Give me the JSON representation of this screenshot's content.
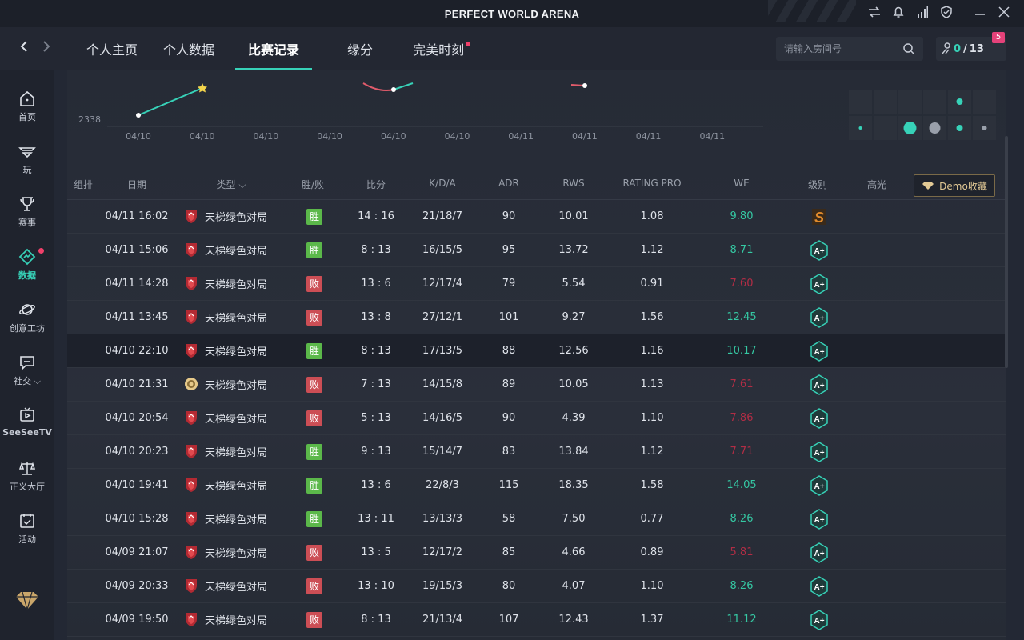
{
  "window": {
    "title": "PERFECT WORLD ARENA"
  },
  "nav": {
    "tabs": [
      {
        "label": "个人主页"
      },
      {
        "label": "个人数据"
      },
      {
        "label": "比赛记录",
        "active": true
      },
      {
        "label": "缘分"
      },
      {
        "label": "完美时刻",
        "dot": true
      }
    ]
  },
  "search": {
    "placeholder": "请输入房间号"
  },
  "counter": {
    "current": "0",
    "separator": "/",
    "total": "13",
    "badge": "5"
  },
  "sidebar": {
    "items": [
      {
        "label": "首页",
        "icon": "home-icon"
      },
      {
        "label": "玩",
        "icon": "play-icon"
      },
      {
        "label": "赛事",
        "icon": "trophy-icon"
      },
      {
        "label": "数据",
        "icon": "data-icon",
        "active": true
      },
      {
        "label": "创意工坊",
        "icon": "planet-icon"
      },
      {
        "label": "社交",
        "icon": "chat-icon"
      },
      {
        "label": "SeeSeeTV",
        "icon": "tv-icon"
      },
      {
        "label": "正义大厅",
        "icon": "justice-icon"
      },
      {
        "label": "活动",
        "icon": "calendar-icon"
      }
    ]
  },
  "chart_data": {
    "type": "line",
    "y_tick_label": "2338",
    "x_labels": [
      "04/10",
      "04/10",
      "04/10",
      "04/10",
      "04/10",
      "04/10",
      "04/11",
      "04/11",
      "04/11",
      "04/11"
    ]
  },
  "table": {
    "headers": {
      "group": "组排",
      "date": "日期",
      "type": "类型",
      "result": "胜/败",
      "score": "比分",
      "kda": "K/D/A",
      "adr": "ADR",
      "rws": "RWS",
      "rating": "RATING PRO",
      "we": "WE",
      "level": "级别",
      "highlight": "高光"
    },
    "demo_button": "Demo收藏",
    "rows": [
      {
        "date": "04/11 16:02",
        "type": "天梯绿色对局",
        "result": "胜",
        "win": true,
        "score": "14 : 16",
        "kda": "21/18/7",
        "adr": "90",
        "rws": "10.01",
        "rating": "1.08",
        "we": "9.80",
        "we_high": true,
        "level": "S"
      },
      {
        "date": "04/11 15:06",
        "type": "天梯绿色对局",
        "result": "胜",
        "win": true,
        "score": "8 : 13",
        "kda": "16/15/5",
        "adr": "95",
        "rws": "13.72",
        "rating": "1.12",
        "we": "8.71",
        "we_high": true,
        "level": "A+"
      },
      {
        "date": "04/11 14:28",
        "type": "天梯绿色对局",
        "result": "败",
        "win": false,
        "score": "13 : 6",
        "kda": "12/17/4",
        "adr": "79",
        "rws": "5.54",
        "rating": "0.91",
        "we": "7.60",
        "we_high": false,
        "level": "A+"
      },
      {
        "date": "04/11 13:45",
        "type": "天梯绿色对局",
        "result": "败",
        "win": false,
        "score": "13 : 8",
        "kda": "27/12/1",
        "adr": "101",
        "rws": "9.27",
        "rating": "1.56",
        "we": "12.45",
        "we_high": true,
        "level": "A+"
      },
      {
        "date": "04/10 22:10",
        "type": "天梯绿色对局",
        "result": "胜",
        "win": true,
        "score": "8 : 13",
        "kda": "17/13/5",
        "adr": "88",
        "rws": "12.56",
        "rating": "1.16",
        "we": "10.17",
        "we_high": true,
        "level": "A+",
        "highlighted": true
      },
      {
        "date": "04/10 21:31",
        "type": "天梯绿色对局",
        "result": "败",
        "win": false,
        "score": "7 : 13",
        "kda": "14/15/8",
        "adr": "89",
        "rws": "10.05",
        "rating": "1.13",
        "we": "7.61",
        "we_high": false,
        "level": "A+",
        "alt_icon": true
      },
      {
        "date": "04/10 20:54",
        "type": "天梯绿色对局",
        "result": "败",
        "win": false,
        "score": "5 : 13",
        "kda": "14/16/5",
        "adr": "90",
        "rws": "4.39",
        "rating": "1.10",
        "we": "7.86",
        "we_high": false,
        "level": "A+"
      },
      {
        "date": "04/10 20:23",
        "type": "天梯绿色对局",
        "result": "胜",
        "win": true,
        "score": "9 : 13",
        "kda": "15/14/7",
        "adr": "83",
        "rws": "13.84",
        "rating": "1.12",
        "we": "7.71",
        "we_high": false,
        "level": "A+"
      },
      {
        "date": "04/10 19:41",
        "type": "天梯绿色对局",
        "result": "胜",
        "win": true,
        "score": "13 : 6",
        "kda": "22/8/3",
        "adr": "115",
        "rws": "18.35",
        "rating": "1.58",
        "we": "14.05",
        "we_high": true,
        "level": "A+"
      },
      {
        "date": "04/10 15:28",
        "type": "天梯绿色对局",
        "result": "胜",
        "win": true,
        "score": "13 : 11",
        "kda": "13/13/3",
        "adr": "58",
        "rws": "7.50",
        "rating": "0.77",
        "we": "8.26",
        "we_high": true,
        "level": "A+"
      },
      {
        "date": "04/09 21:07",
        "type": "天梯绿色对局",
        "result": "败",
        "win": false,
        "score": "13 : 5",
        "kda": "12/17/2",
        "adr": "85",
        "rws": "4.66",
        "rating": "0.89",
        "we": "5.81",
        "we_high": false,
        "level": "A+"
      },
      {
        "date": "04/09 20:33",
        "type": "天梯绿色对局",
        "result": "败",
        "win": false,
        "score": "13 : 10",
        "kda": "19/15/3",
        "adr": "80",
        "rws": "4.07",
        "rating": "1.10",
        "we": "8.26",
        "we_high": true,
        "level": "A+"
      },
      {
        "date": "04/09 19:50",
        "type": "天梯绿色对局",
        "result": "败",
        "win": false,
        "score": "8 : 13",
        "kda": "21/13/4",
        "adr": "107",
        "rws": "12.43",
        "rating": "1.37",
        "we": "11.12",
        "we_high": true,
        "level": "A+"
      }
    ]
  },
  "colors": {
    "accent": "#37d2b8",
    "win": "#5bb84a",
    "loss": "#cc4e55",
    "we_high": "#35c8a3",
    "we_low": "#b02d45"
  }
}
